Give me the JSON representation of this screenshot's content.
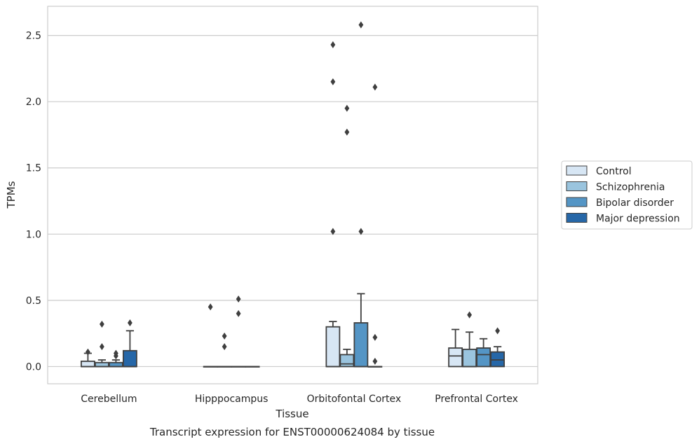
{
  "chart_data": {
    "type": "box",
    "title": "Transcript expression for ENST00000624084 by tissue",
    "xlabel": "Tissue",
    "ylabel": "TPMs",
    "ylim": [
      -0.13,
      2.72
    ],
    "yticks": [
      0.0,
      0.5,
      1.0,
      1.5,
      2.0,
      2.5
    ],
    "ytick_labels": [
      "0.0",
      "0.5",
      "1.0",
      "1.5",
      "2.0",
      "2.5"
    ],
    "categories": [
      "Cerebellum",
      "Hipppocampus",
      "Orbitofontal Cortex",
      "Prefrontal Cortex"
    ],
    "grid": "horizontal",
    "legend_position": "right",
    "series": [
      {
        "name": "Control",
        "color": "#d7e6f4",
        "boxes": [
          {
            "q1": 0.0,
            "median": 0.0,
            "q3": 0.04,
            "whisker_low": 0.0,
            "whisker_high": 0.1,
            "outliers": [
              0.11
            ]
          },
          {
            "q1": 0.0,
            "median": 0.0,
            "q3": 0.0,
            "whisker_low": 0.0,
            "whisker_high": 0.0,
            "outliers": [
              0.45
            ]
          },
          {
            "q1": 0.0,
            "median": 0.0,
            "q3": 0.3,
            "whisker_low": 0.0,
            "whisker_high": 0.34,
            "outliers": [
              1.02,
              2.15,
              2.43
            ]
          },
          {
            "q1": 0.0,
            "median": 0.08,
            "q3": 0.14,
            "whisker_low": 0.0,
            "whisker_high": 0.28,
            "outliers": []
          }
        ]
      },
      {
        "name": "Schizophrenia",
        "color": "#9ac4de",
        "boxes": [
          {
            "q1": 0.0,
            "median": 0.0,
            "q3": 0.03,
            "whisker_low": 0.0,
            "whisker_high": 0.05,
            "outliers": [
              0.15,
              0.32
            ]
          },
          {
            "q1": 0.0,
            "median": 0.0,
            "q3": 0.0,
            "whisker_low": 0.0,
            "whisker_high": 0.0,
            "outliers": [
              0.15,
              0.23
            ]
          },
          {
            "q1": 0.0,
            "median": 0.02,
            "q3": 0.09,
            "whisker_low": 0.0,
            "whisker_high": 0.13,
            "outliers": [
              1.77,
              1.95
            ]
          },
          {
            "q1": 0.0,
            "median": 0.0,
            "q3": 0.13,
            "whisker_low": 0.0,
            "whisker_high": 0.26,
            "outliers": [
              0.39
            ]
          }
        ]
      },
      {
        "name": "Bipolar disorder",
        "color": "#5495c5",
        "boxes": [
          {
            "q1": 0.0,
            "median": 0.0,
            "q3": 0.03,
            "whisker_low": 0.0,
            "whisker_high": 0.05,
            "outliers": [
              0.08,
              0.1
            ]
          },
          {
            "q1": 0.0,
            "median": 0.0,
            "q3": 0.0,
            "whisker_low": 0.0,
            "whisker_high": 0.0,
            "outliers": [
              0.4,
              0.51
            ]
          },
          {
            "q1": 0.0,
            "median": 0.0,
            "q3": 0.33,
            "whisker_low": 0.0,
            "whisker_high": 0.55,
            "outliers": [
              1.02,
              2.58
            ]
          },
          {
            "q1": 0.0,
            "median": 0.09,
            "q3": 0.14,
            "whisker_low": 0.0,
            "whisker_high": 0.21,
            "outliers": []
          }
        ]
      },
      {
        "name": "Major depression",
        "color": "#2667a8",
        "boxes": [
          {
            "q1": 0.0,
            "median": 0.0,
            "q3": 0.12,
            "whisker_low": 0.0,
            "whisker_high": 0.27,
            "outliers": [
              0.33
            ]
          },
          {
            "q1": 0.0,
            "median": 0.0,
            "q3": 0.0,
            "whisker_low": 0.0,
            "whisker_high": 0.0,
            "outliers": []
          },
          {
            "q1": 0.0,
            "median": 0.0,
            "q3": 0.0,
            "whisker_low": 0.0,
            "whisker_high": 0.0,
            "outliers": [
              0.04,
              0.22,
              2.11
            ]
          },
          {
            "q1": 0.0,
            "median": 0.05,
            "q3": 0.11,
            "whisker_low": 0.0,
            "whisker_high": 0.15,
            "outliers": [
              0.27
            ]
          }
        ]
      }
    ]
  }
}
